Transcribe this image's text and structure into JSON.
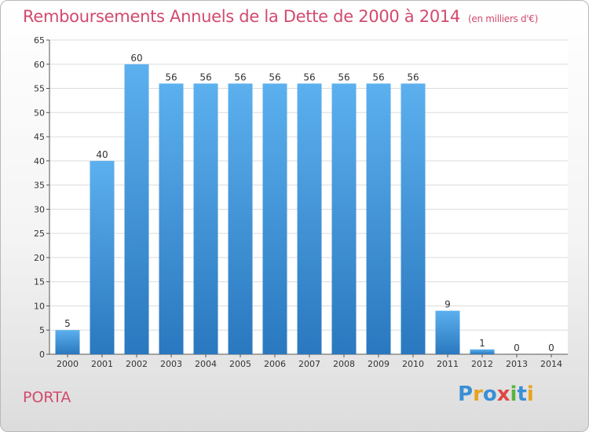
{
  "title": {
    "main": "Remboursements Annuels de la Dette de 2000 à 2014",
    "unit": "(en milliers d'€)"
  },
  "commune": "PORTA",
  "logo": {
    "text": "Proxiti",
    "letters": [
      {
        "ch": "P",
        "color": "#3a8fd6"
      },
      {
        "ch": "r",
        "color": "#e8a21c"
      },
      {
        "ch": "o",
        "color": "#3a8fd6"
      },
      {
        "ch": "x",
        "color": "#e04646"
      },
      {
        "ch": "i",
        "color": "#58b33e"
      },
      {
        "ch": "t",
        "color": "#3a8fd6"
      },
      {
        "ch": "i",
        "color": "#e8a21c"
      }
    ]
  },
  "colors": {
    "title": "#d24a6e",
    "bar_top": "#5cb0ee",
    "bar_bottom": "#2a78bf",
    "grid": "#dcdcdc"
  },
  "chart_data": {
    "type": "bar",
    "categories": [
      "2000",
      "2001",
      "2002",
      "2003",
      "2004",
      "2005",
      "2006",
      "2007",
      "2008",
      "2009",
      "2010",
      "2011",
      "2012",
      "2013",
      "2014"
    ],
    "values": [
      5,
      40,
      60,
      56,
      56,
      56,
      56,
      56,
      56,
      56,
      56,
      9,
      1,
      0,
      0
    ],
    "ylim": [
      0,
      65
    ],
    "yticks": [
      0,
      5,
      10,
      15,
      20,
      25,
      30,
      35,
      40,
      45,
      50,
      55,
      60,
      65
    ],
    "grid": true
  }
}
